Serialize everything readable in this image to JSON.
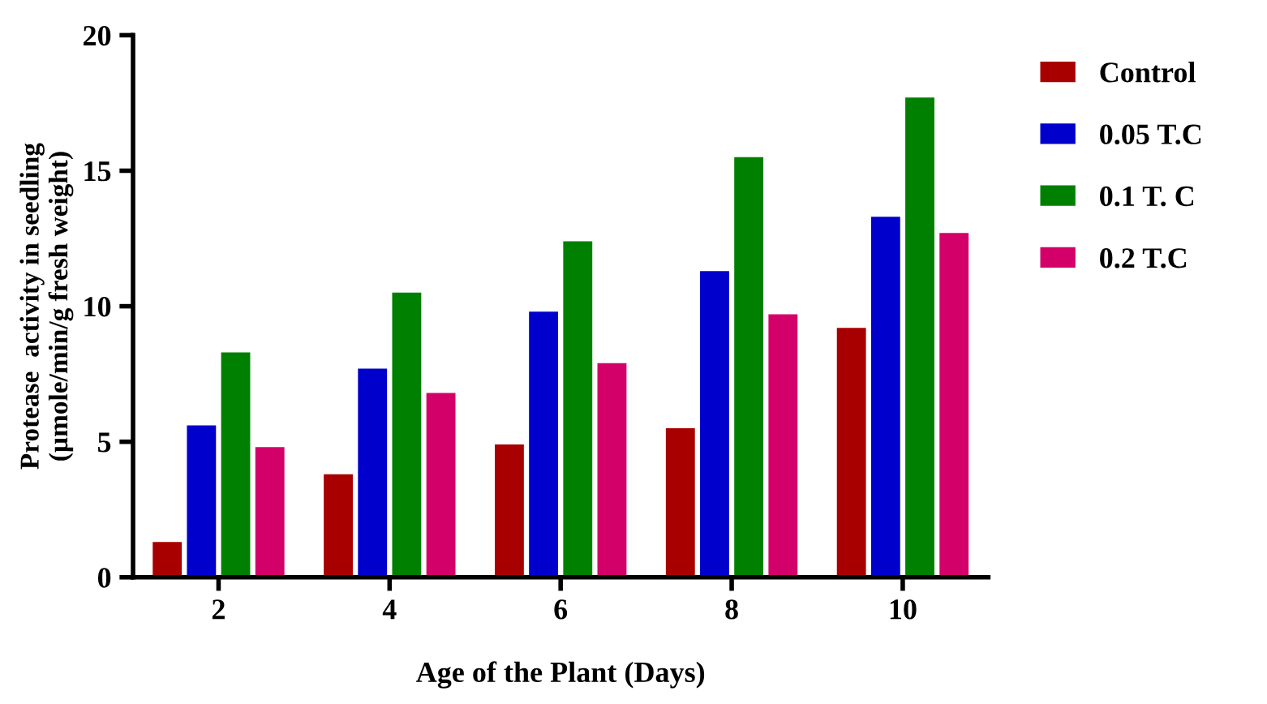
{
  "chart_data": {
    "type": "bar",
    "xlabel": "Age of the Plant (Days)",
    "ylabel": "Protease  activity in seedling\n(µmole/min/g fresh weight)",
    "categories": [
      "2",
      "4",
      "6",
      "8",
      "10"
    ],
    "series": [
      {
        "name": "Control",
        "color": "#a80000",
        "values": [
          1.3,
          3.8,
          4.9,
          5.5,
          9.2
        ]
      },
      {
        "name": "0.05 T.C",
        "color": "#0000cc",
        "values": [
          5.6,
          7.7,
          9.8,
          11.3,
          13.3
        ]
      },
      {
        "name": "0.1 T. C",
        "color": "#008000",
        "values": [
          8.3,
          10.5,
          12.4,
          15.5,
          17.7
        ]
      },
      {
        "name": "0.2 T.C",
        "color": "#d4006a",
        "values": [
          4.8,
          6.8,
          7.9,
          9.7,
          12.7
        ]
      }
    ],
    "ylim": [
      0,
      20
    ],
    "yticks": [
      0,
      5,
      10,
      15,
      20
    ],
    "grid": false,
    "legend": "top right"
  }
}
